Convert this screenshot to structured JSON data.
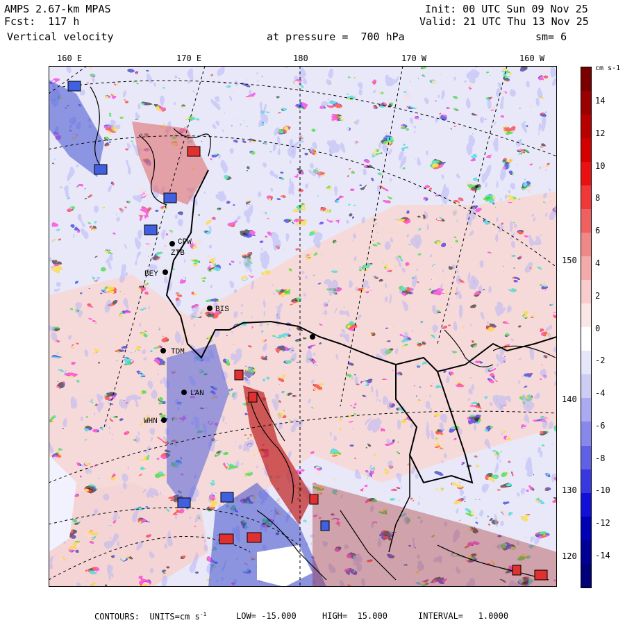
{
  "header": {
    "model": "AMPS 2.67-km MPAS",
    "fcst": "Fcst:  117 h",
    "field": "Vertical velocity",
    "init": "Init: 00 UTC Sun 09 Nov 25",
    "valid": "Valid: 21 UTC Thu 13 Nov 25",
    "pressure": "at pressure =  700 hPa",
    "smoothing": "sm= 6"
  },
  "longitude_labels": [
    "160 E",
    "170 E",
    "180",
    "170 W",
    "160 W"
  ],
  "latitude_labels": [
    "150 W",
    "140 W",
    "130 W",
    "120 W"
  ],
  "stations": [
    "CPW",
    "ZTB",
    "BEY",
    "BIS",
    "TDM",
    "LAN",
    "WHN"
  ],
  "colorbar": {
    "units": "cm s-1",
    "ticks": [
      "14",
      "12",
      "10",
      "8",
      "6",
      "4",
      "2",
      "0",
      "-2",
      "-4",
      "-6",
      "-8",
      "-10",
      "-12",
      "-14"
    ],
    "colors": [
      "#7a0000",
      "#9a0000",
      "#b80000",
      "#d40000",
      "#e81010",
      "#f03838",
      "#f06060",
      "#f08888",
      "#f4aaaa",
      "#f8cccc",
      "#fbe6e6",
      "#ffffff",
      "#e6e6fb",
      "#ccccf4",
      "#aaaaf0",
      "#8888ec",
      "#6060e6",
      "#3838e0",
      "#1010d8",
      "#0000b4",
      "#000094",
      "#000078"
    ]
  },
  "footer": {
    "contours": "CONTOURS:  UNITS=cm s",
    "units_sup": "-1",
    "low": "LOW= -15.000",
    "high": "HIGH=  15.000",
    "interval": "INTERVAL=   1.0000"
  }
}
